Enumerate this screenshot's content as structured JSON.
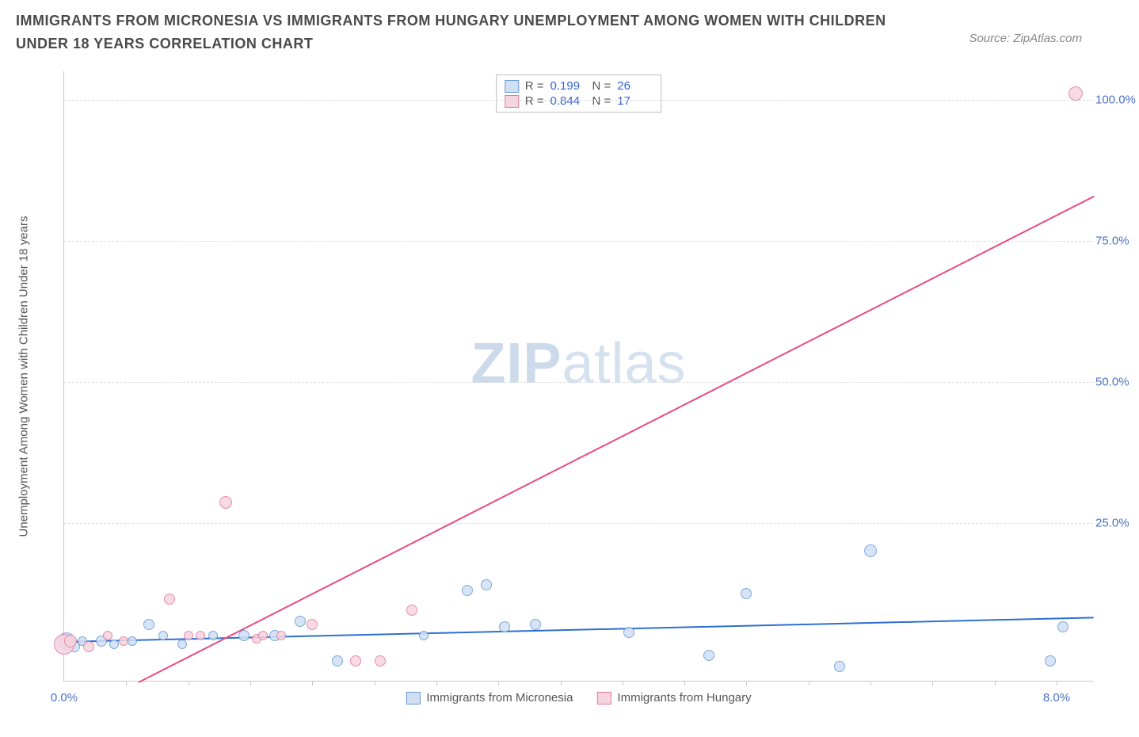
{
  "title": "IMMIGRANTS FROM MICRONESIA VS IMMIGRANTS FROM HUNGARY UNEMPLOYMENT AMONG WOMEN WITH CHILDREN UNDER 18 YEARS CORRELATION CHART",
  "source": "Source: ZipAtlas.com",
  "y_axis_label": "Unemployment Among Women with Children Under 18 years",
  "watermark_a": "ZIP",
  "watermark_b": "atlas",
  "chart": {
    "type": "scatter",
    "xlim": [
      0,
      8.3
    ],
    "ylim": [
      -3,
      105
    ],
    "x_ticks_minor": [
      0.5,
      1.0,
      1.5,
      2.0,
      2.5,
      3.0,
      3.5,
      4.0,
      4.5,
      5.0,
      5.5,
      6.0,
      6.5,
      7.0,
      7.5,
      8.0
    ],
    "x_tick_labels": [
      {
        "x": 0.0,
        "label": "0.0%"
      },
      {
        "x": 8.0,
        "label": "8.0%"
      }
    ],
    "y_grid": [
      25,
      50,
      75,
      100
    ],
    "y_tick_labels": [
      {
        "y": 25,
        "label": "25.0%"
      },
      {
        "y": 50,
        "label": "50.0%"
      },
      {
        "y": 75,
        "label": "75.0%"
      },
      {
        "y": 100,
        "label": "100.0%"
      }
    ],
    "background_color": "#ffffff",
    "grid_color": "#dcdcdc",
    "axis_color": "#c8c8c8"
  },
  "series": [
    {
      "name": "Immigrants from Micronesia",
      "fill": "#cfe0f5",
      "stroke": "#6a9ad4",
      "line_color": "#2e6fd1",
      "R": "0.199",
      "N": "26",
      "trend": {
        "x1": 0.0,
        "y1": 4.2,
        "x2": 8.3,
        "y2": 8.5
      },
      "points": [
        {
          "x": 0.02,
          "y": 4.0,
          "r": 11
        },
        {
          "x": 0.08,
          "y": 3.0,
          "r": 7
        },
        {
          "x": 0.15,
          "y": 4.0,
          "r": 6
        },
        {
          "x": 0.3,
          "y": 4.0,
          "r": 7
        },
        {
          "x": 0.4,
          "y": 3.5,
          "r": 6
        },
        {
          "x": 0.55,
          "y": 4.0,
          "r": 6
        },
        {
          "x": 0.68,
          "y": 7.0,
          "r": 7
        },
        {
          "x": 0.8,
          "y": 5.0,
          "r": 6
        },
        {
          "x": 0.95,
          "y": 3.5,
          "r": 6
        },
        {
          "x": 1.2,
          "y": 5.0,
          "r": 6
        },
        {
          "x": 1.45,
          "y": 5.0,
          "r": 7
        },
        {
          "x": 1.7,
          "y": 5.0,
          "r": 7
        },
        {
          "x": 1.9,
          "y": 7.5,
          "r": 7
        },
        {
          "x": 2.2,
          "y": 0.5,
          "r": 7
        },
        {
          "x": 2.9,
          "y": 5.0,
          "r": 6
        },
        {
          "x": 3.25,
          "y": 13.0,
          "r": 7
        },
        {
          "x": 3.4,
          "y": 14.0,
          "r": 7
        },
        {
          "x": 3.55,
          "y": 6.5,
          "r": 7
        },
        {
          "x": 3.8,
          "y": 7.0,
          "r": 7
        },
        {
          "x": 4.55,
          "y": 5.5,
          "r": 7
        },
        {
          "x": 5.2,
          "y": 1.5,
          "r": 7
        },
        {
          "x": 5.5,
          "y": 12.5,
          "r": 7
        },
        {
          "x": 6.25,
          "y": -0.5,
          "r": 7
        },
        {
          "x": 6.5,
          "y": 20.0,
          "r": 8
        },
        {
          "x": 7.95,
          "y": 0.5,
          "r": 7
        },
        {
          "x": 8.05,
          "y": 6.5,
          "r": 7
        }
      ]
    },
    {
      "name": "Immigrants from Hungary",
      "fill": "#f6d4df",
      "stroke": "#e37aa0",
      "line_color": "#e84b85",
      "R": "0.844",
      "N": "17",
      "trend": {
        "x1": 0.6,
        "y1": -3.0,
        "x2": 8.3,
        "y2": 83.0
      },
      "points": [
        {
          "x": 0.0,
          "y": 3.5,
          "r": 13
        },
        {
          "x": 0.05,
          "y": 4.0,
          "r": 8
        },
        {
          "x": 0.2,
          "y": 3.0,
          "r": 7
        },
        {
          "x": 0.35,
          "y": 5.0,
          "r": 6
        },
        {
          "x": 0.48,
          "y": 4.0,
          "r": 6
        },
        {
          "x": 0.85,
          "y": 11.5,
          "r": 7
        },
        {
          "x": 1.0,
          "y": 5.0,
          "r": 6
        },
        {
          "x": 1.1,
          "y": 5.0,
          "r": 6
        },
        {
          "x": 1.3,
          "y": 28.5,
          "r": 8
        },
        {
          "x": 1.55,
          "y": 4.5,
          "r": 6
        },
        {
          "x": 1.6,
          "y": 5.0,
          "r": 6
        },
        {
          "x": 1.75,
          "y": 5.0,
          "r": 6
        },
        {
          "x": 2.0,
          "y": 7.0,
          "r": 7
        },
        {
          "x": 2.35,
          "y": 0.5,
          "r": 7
        },
        {
          "x": 2.55,
          "y": 0.5,
          "r": 7
        },
        {
          "x": 2.8,
          "y": 9.5,
          "r": 7
        },
        {
          "x": 8.15,
          "y": 101.0,
          "r": 9
        }
      ]
    }
  ],
  "bottom_legend": [
    {
      "swatch_fill": "#cfe0f5",
      "swatch_stroke": "#6a9ad4",
      "label": "Immigrants from Micronesia"
    },
    {
      "swatch_fill": "#f6d4df",
      "swatch_stroke": "#e37aa0",
      "label": "Immigrants from Hungary"
    }
  ]
}
